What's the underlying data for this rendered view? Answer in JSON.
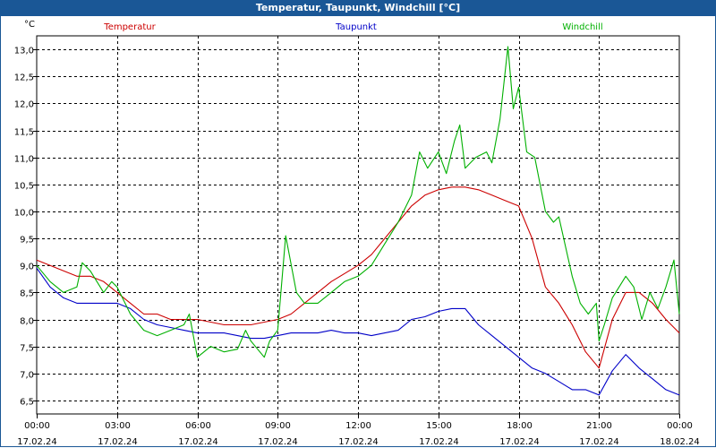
{
  "chart_data": {
    "type": "line",
    "title": "Temperatur, Taupunkt, Windchill [°C]",
    "ylabel": "°C",
    "ylim": [
      6.25,
      13.25
    ],
    "xlim": [
      0,
      24
    ],
    "y_ticks": [
      "13,0",
      "12,5",
      "12,0",
      "11,5",
      "11,0",
      "10,5",
      "10,0",
      "9,5",
      "9,0",
      "8,5",
      "8,0",
      "7,5",
      "7,0",
      "6,5"
    ],
    "y_tick_values": [
      13.0,
      12.5,
      12.0,
      11.5,
      11.0,
      10.5,
      10.0,
      9.5,
      9.0,
      8.5,
      8.0,
      7.5,
      7.0,
      6.5
    ],
    "x_ticks": [
      {
        "time": "00:00",
        "date": "17.02.24"
      },
      {
        "time": "03:00",
        "date": "17.02.24"
      },
      {
        "time": "06:00",
        "date": "17.02.24"
      },
      {
        "time": "09:00",
        "date": "17.02.24"
      },
      {
        "time": "12:00",
        "date": "17.02.24"
      },
      {
        "time": "15:00",
        "date": "17.02.24"
      },
      {
        "time": "18:00",
        "date": "17.02.24"
      },
      {
        "time": "21:00",
        "date": "17.02.24"
      },
      {
        "time": "00:00",
        "date": "18.02.24"
      }
    ],
    "x_tick_values": [
      0,
      3,
      6,
      9,
      12,
      15,
      18,
      21,
      24
    ],
    "series": [
      {
        "name": "Temperatur",
        "color": "#cc0000",
        "x": [
          0,
          0.5,
          1,
          1.5,
          2,
          2.5,
          3,
          3.5,
          4,
          4.5,
          5,
          5.5,
          6,
          6.5,
          7,
          7.5,
          8,
          8.5,
          9,
          9.5,
          10,
          10.5,
          11,
          11.5,
          12,
          12.5,
          13,
          13.5,
          14,
          14.5,
          15,
          15.5,
          16,
          16.5,
          17,
          17.5,
          18,
          18.5,
          19,
          19.5,
          20,
          20.5,
          21,
          21.5,
          22,
          22.5,
          23,
          23.5,
          24
        ],
        "values": [
          9.1,
          9.0,
          8.9,
          8.8,
          8.8,
          8.7,
          8.5,
          8.3,
          8.1,
          8.1,
          8.0,
          8.0,
          8.0,
          7.95,
          7.9,
          7.9,
          7.9,
          7.95,
          8.0,
          8.1,
          8.3,
          8.5,
          8.7,
          8.85,
          9.0,
          9.2,
          9.5,
          9.8,
          10.1,
          10.3,
          10.4,
          10.45,
          10.45,
          10.4,
          10.3,
          10.2,
          10.1,
          9.5,
          8.6,
          8.3,
          7.9,
          7.4,
          7.1,
          8.0,
          8.5,
          8.5,
          8.3,
          8.0,
          7.75
        ]
      },
      {
        "name": "Taupunkt",
        "color": "#0000c8",
        "x": [
          0,
          0.5,
          1,
          1.5,
          2,
          2.5,
          3,
          3.5,
          4,
          4.5,
          5,
          5.5,
          6,
          6.5,
          7,
          7.5,
          8,
          8.5,
          9,
          9.5,
          10,
          10.5,
          11,
          11.5,
          12,
          12.5,
          13,
          13.5,
          14,
          14.5,
          15,
          15.5,
          16,
          16.5,
          17,
          17.5,
          18,
          18.5,
          19,
          19.5,
          20,
          20.5,
          21,
          21.5,
          22,
          22.5,
          23,
          23.5,
          24
        ],
        "values": [
          8.95,
          8.6,
          8.4,
          8.3,
          8.3,
          8.3,
          8.3,
          8.2,
          8.0,
          7.9,
          7.85,
          7.8,
          7.75,
          7.75,
          7.75,
          7.7,
          7.65,
          7.65,
          7.7,
          7.75,
          7.75,
          7.75,
          7.8,
          7.75,
          7.75,
          7.7,
          7.75,
          7.8,
          8.0,
          8.05,
          8.15,
          8.2,
          8.2,
          7.9,
          7.7,
          7.5,
          7.3,
          7.1,
          7.0,
          6.85,
          6.7,
          6.7,
          6.6,
          7.05,
          7.35,
          7.1,
          6.9,
          6.7,
          6.6
        ]
      },
      {
        "name": "Windchill",
        "color": "#00b000",
        "x": [
          0,
          0.5,
          1,
          1.5,
          1.7,
          2,
          2.5,
          2.8,
          3,
          3.5,
          4,
          4.5,
          5,
          5.5,
          5.7,
          6,
          6.5,
          7,
          7.5,
          7.8,
          8,
          8.5,
          8.7,
          9,
          9.3,
          9.7,
          10,
          10.5,
          11,
          11.5,
          12,
          12.5,
          13,
          13.5,
          14,
          14.3,
          14.6,
          15,
          15.3,
          15.6,
          15.8,
          16,
          16.4,
          16.8,
          17,
          17.3,
          17.6,
          17.8,
          18,
          18.3,
          18.6,
          19,
          19.3,
          19.5,
          20,
          20.3,
          20.6,
          20.9,
          21,
          21.2,
          21.5,
          22,
          22.3,
          22.6,
          22.9,
          23.2,
          23.5,
          23.8,
          24
        ],
        "values": [
          9.0,
          8.7,
          8.5,
          8.6,
          9.05,
          8.9,
          8.5,
          8.7,
          8.6,
          8.1,
          7.8,
          7.7,
          7.8,
          7.9,
          8.1,
          7.3,
          7.5,
          7.4,
          7.45,
          7.8,
          7.6,
          7.3,
          7.6,
          7.8,
          9.55,
          8.5,
          8.3,
          8.3,
          8.5,
          8.7,
          8.8,
          9.0,
          9.4,
          9.8,
          10.3,
          11.1,
          10.8,
          11.1,
          10.7,
          11.3,
          11.6,
          10.8,
          11.0,
          11.1,
          10.9,
          11.7,
          13.05,
          11.9,
          12.3,
          11.1,
          11.0,
          10.0,
          9.8,
          9.9,
          8.8,
          8.3,
          8.1,
          8.3,
          7.6,
          7.9,
          8.4,
          8.8,
          8.6,
          8.0,
          8.5,
          8.2,
          8.6,
          9.1,
          8.1
        ]
      }
    ]
  }
}
